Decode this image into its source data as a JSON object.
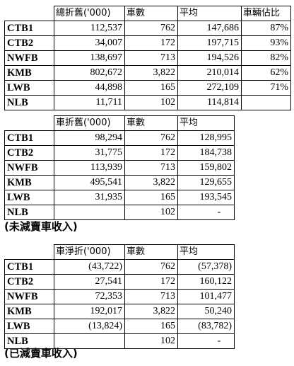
{
  "table1": {
    "headers": [
      "",
      "總折舊('000)",
      "車數",
      "平均",
      "車輛佔比"
    ],
    "rows": [
      [
        "CTB1",
        "112,537",
        "762",
        "147,686",
        "87%"
      ],
      [
        "CTB2",
        "34,007",
        "172",
        "197,715",
        "93%"
      ],
      [
        "NWFB",
        "138,697",
        "713",
        "194,526",
        "82%"
      ],
      [
        "KMB",
        "802,672",
        "3,822",
        "210,014",
        "62%"
      ],
      [
        "LWB",
        "44,898",
        "165",
        "272,109",
        "71%"
      ],
      [
        "NLB",
        "11,711",
        "102",
        "114,814",
        ""
      ]
    ]
  },
  "table2": {
    "headers": [
      "",
      "車折舊('000)",
      "車數",
      "平均"
    ],
    "rows": [
      [
        "CTB1",
        "98,294",
        "762",
        "128,995"
      ],
      [
        "CTB2",
        "31,775",
        "172",
        "184,738"
      ],
      [
        "NWFB",
        "113,939",
        "713",
        "159,802"
      ],
      [
        "KMB",
        "495,541",
        "3,822",
        "129,655"
      ],
      [
        "LWB",
        "31,935",
        "165",
        "193,545"
      ],
      [
        "NLB",
        "",
        "102",
        "-"
      ]
    ],
    "caption": "(未減賣車收入)"
  },
  "table3": {
    "headers": [
      "",
      "車淨折('000)",
      "車數",
      "平均"
    ],
    "rows": [
      [
        "CTB1",
        "(43,722)",
        "762",
        "(57,378)"
      ],
      [
        "CTB2",
        "27,541",
        "172",
        "160,122"
      ],
      [
        "NWFB",
        "72,353",
        "713",
        "101,477"
      ],
      [
        "KMB",
        "192,017",
        "3,822",
        "50,240"
      ],
      [
        "LWB",
        "(13,824)",
        "165",
        "(83,782)"
      ],
      [
        "NLB",
        "",
        "102",
        "-"
      ]
    ],
    "caption": "(已減賣車收入)"
  }
}
